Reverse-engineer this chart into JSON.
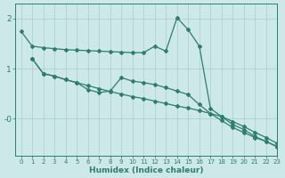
{
  "background_color": "#cce8e8",
  "line_color": "#2e7d6e",
  "grid_color": "#aacece",
  "xlabel": "Humidex (Indice chaleur)",
  "xlim": [
    -0.5,
    23
  ],
  "ylim": [
    -0.75,
    2.3
  ],
  "ytick_vals": [
    2.0,
    1.0,
    0.0
  ],
  "ytick_labels": [
    "2",
    "1",
    "-0"
  ],
  "xtick_vals": [
    0,
    1,
    2,
    3,
    4,
    5,
    6,
    7,
    8,
    9,
    10,
    11,
    12,
    13,
    14,
    15,
    16,
    17,
    18,
    19,
    20,
    21,
    22,
    23
  ],
  "line1_x": [
    0,
    1,
    2,
    3,
    4,
    5,
    6,
    7,
    8,
    9,
    10,
    11,
    12,
    13,
    14,
    15,
    16,
    17,
    18,
    19,
    20,
    21,
    22,
    23
  ],
  "line1_y": [
    1.75,
    1.45,
    1.42,
    1.4,
    1.38,
    1.37,
    1.36,
    1.35,
    1.34,
    1.33,
    1.32,
    1.32,
    1.45,
    1.35,
    2.02,
    1.78,
    1.45,
    0.2,
    0.04,
    -0.12,
    -0.22,
    -0.36,
    -0.46,
    -0.57
  ],
  "line2_x": [
    1,
    2,
    3,
    4,
    5,
    6,
    7,
    8,
    9,
    10,
    11,
    12,
    13,
    14,
    15,
    16,
    17,
    18,
    19,
    20,
    21,
    22,
    23
  ],
  "line2_y": [
    1.2,
    0.9,
    0.85,
    0.78,
    0.72,
    0.58,
    0.52,
    0.55,
    0.82,
    0.75,
    0.72,
    0.68,
    0.62,
    0.55,
    0.48,
    0.28,
    0.1,
    -0.04,
    -0.18,
    -0.28,
    -0.38,
    -0.46,
    -0.56
  ],
  "line3_x": [
    1,
    2,
    3,
    4,
    5,
    6,
    7,
    8,
    9,
    10,
    11,
    12,
    13,
    14,
    15,
    16,
    17,
    18,
    19,
    20,
    21,
    22,
    23
  ],
  "line3_y": [
    1.2,
    0.9,
    0.85,
    0.78,
    0.72,
    0.66,
    0.6,
    0.54,
    0.49,
    0.44,
    0.4,
    0.35,
    0.3,
    0.25,
    0.21,
    0.16,
    0.1,
    0.04,
    -0.06,
    -0.16,
    -0.28,
    -0.38,
    -0.5
  ],
  "marker_style": "D",
  "marker_size": 2.0,
  "line_width": 0.9
}
